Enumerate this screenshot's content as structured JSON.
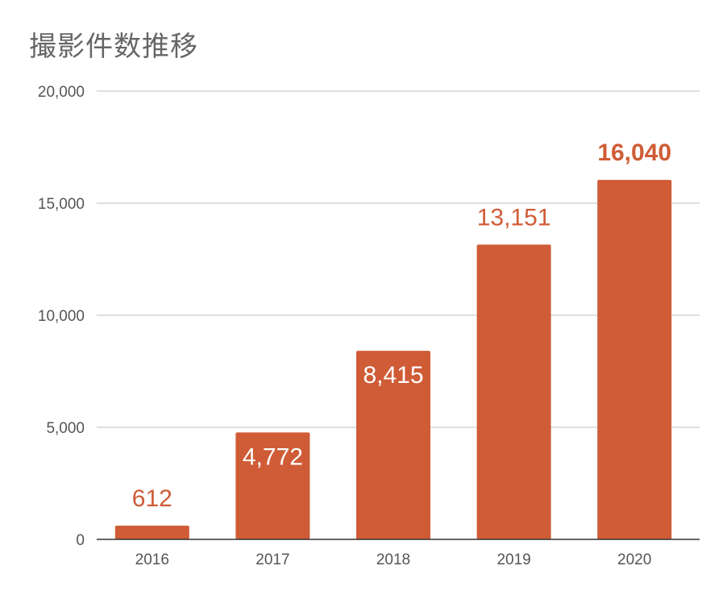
{
  "chart_data": {
    "type": "bar",
    "title": "撮影件数推移",
    "categories": [
      "2016",
      "2017",
      "2018",
      "2019",
      "2020"
    ],
    "values": [
      612,
      4772,
      8415,
      13151,
      16040
    ],
    "value_labels": [
      "612",
      "4,772",
      "8,415",
      "13,151",
      "16,040"
    ],
    "ylim": [
      0,
      20000
    ],
    "y_ticks": [
      0,
      5000,
      10000,
      15000,
      20000
    ],
    "y_tick_labels": [
      "0",
      "5,000",
      "10,000",
      "15,000",
      "20,000"
    ],
    "grid": true,
    "legend": "none",
    "colors": {
      "bar": "#cf5c36",
      "label_outside": "#cf5c36",
      "label_inside": "#ffffff",
      "grid": "#cccccc",
      "axis": "#333333"
    }
  }
}
